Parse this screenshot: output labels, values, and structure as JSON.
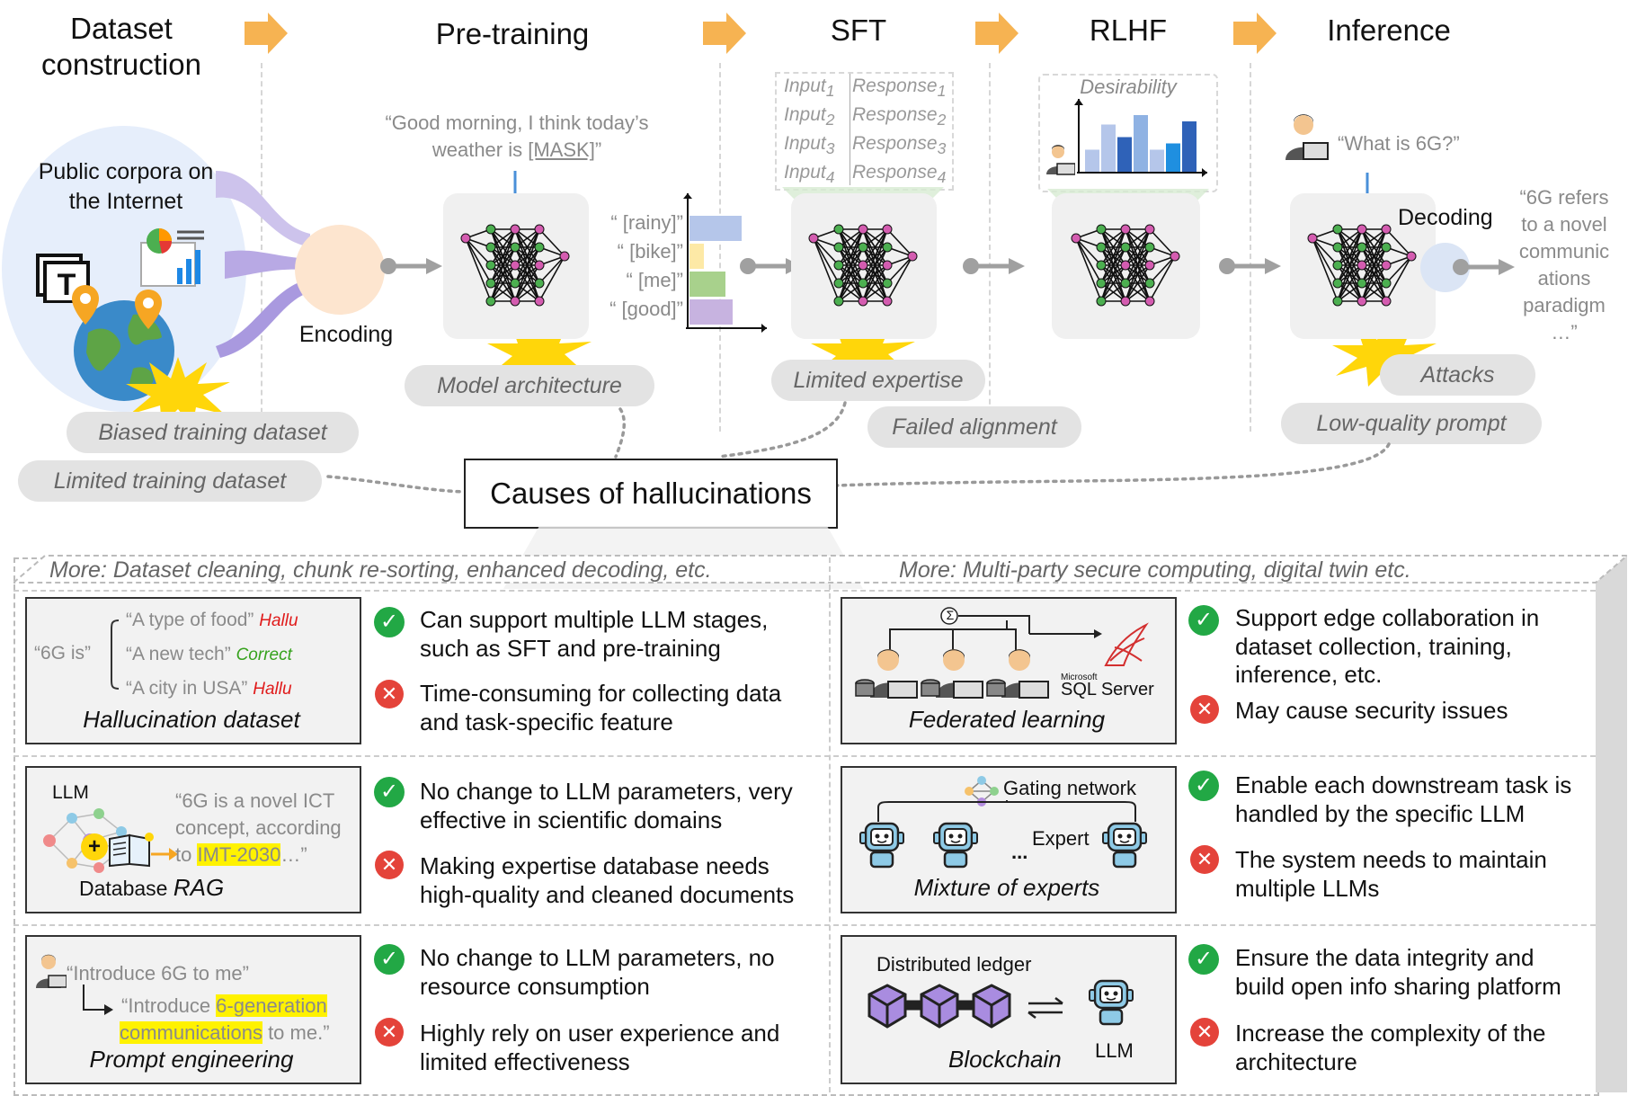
{
  "stages": {
    "dataset": "Dataset construction",
    "pretraining": "Pre-training",
    "sft": "SFT",
    "rlhf": "RLHF",
    "inference": "Inference"
  },
  "top": {
    "corpora": "Public corpora on the Internet",
    "encoding": "Encoding",
    "mask_quote_1": "“Good morning, I think today’s",
    "mask_quote_2": "weather is ",
    "mask_token": "[MASK]",
    "mask_quote_end": "”",
    "candidates": [
      "“ [rainy]”",
      "“ [bike]”",
      "“ [me]”",
      "“ [good]”"
    ],
    "sft_rows": [
      {
        "input": "Input",
        "sub": "1",
        "response": "Response",
        "rsub": "1"
      },
      {
        "input": "Input",
        "sub": "2",
        "response": "Response",
        "rsub": "2"
      },
      {
        "input": "Input",
        "sub": "3",
        "response": "Response",
        "rsub": "3"
      },
      {
        "input": "Input",
        "sub": "4",
        "response": "Response",
        "rsub": "4"
      }
    ],
    "desirability": "Desirability",
    "question": "“What is 6G?”",
    "decoding": "Decoding",
    "answer_lines": [
      "“6G refers",
      "to a novel",
      "communic",
      "ations",
      "paradigm",
      "…”"
    ]
  },
  "causes": {
    "biased": "Biased training dataset",
    "limited_dataset": "Limited training dataset",
    "model_arch": "Model architecture",
    "limited_expertise": "Limited expertise",
    "failed_alignment": "Failed alignment",
    "attacks": "Attacks",
    "low_quality": "Low-quality prompt",
    "center": "Causes of hallucinations"
  },
  "more": {
    "left": "More: Dataset cleaning, chunk re-sorting, enhanced decoding, etc.",
    "right": "More: Multi-party secure computing, digital twin etc."
  },
  "left_panels": [
    {
      "caption": "Hallucination dataset",
      "lead": "“6G is”",
      "items": [
        {
          "text": "“A type of food”",
          "tag": "Hallu"
        },
        {
          "text": "“A new tech”",
          "tag": "Correct"
        },
        {
          "text": "“A city in USA”",
          "tag": "Hallu"
        }
      ],
      "pro": [
        "Can support multiple LLM stages,",
        "such as SFT and pre-training"
      ],
      "con": [
        "Time-consuming for collecting data",
        "and task-specific feature"
      ]
    },
    {
      "caption_a": "Database ",
      "caption_b": "RAG",
      "llm_label": "LLM",
      "quote": [
        "“6G is a novel ICT",
        "concept, according",
        "to "
      ],
      "quote_hl": "IMT-2030",
      "quote_end": "…”",
      "pro": [
        "No change to LLM parameters, very",
        "effective in scientific domains"
      ],
      "con": [
        "Making expertise database needs",
        "high-quality and cleaned documents"
      ]
    },
    {
      "caption": "Prompt engineering",
      "quote1": "“Introduce 6G to me”",
      "quote2_a": "“Introduce ",
      "quote2_hl1": "6-generation",
      "quote2_hl2": "communications",
      "quote2_b": " to me.”",
      "pro": [
        "No change to LLM parameters, no",
        "resource consumption"
      ],
      "con": [
        "Highly rely on user experience and",
        "limited effectiveness"
      ]
    }
  ],
  "right_panels": [
    {
      "caption": "Federated learning",
      "sigma": "Σ",
      "ms": "Microsoft",
      "sql": "SQL Server",
      "pro": [
        "Support edge collaboration in",
        "dataset collection, training,",
        "inference, etc."
      ],
      "con": [
        "May cause security issues"
      ]
    },
    {
      "caption": "Mixture of experts",
      "gating": "Gating network",
      "expert": "Expert",
      "dots": "...",
      "pro": [
        "Enable each downstream task is",
        "handled by the specific LLM"
      ],
      "con": [
        "The system needs to maintain",
        "multiple LLMs"
      ]
    },
    {
      "caption": "Blockchain",
      "ledger": "Distributed ledger",
      "llm": "LLM",
      "pro": [
        "Ensure the data integrity and",
        "build open info sharing platform"
      ],
      "con": [
        "Increase the complexity of the",
        "architecture"
      ]
    }
  ],
  "colors": {
    "orange_arrow": "#f6b352",
    "gray_pill": "#e3e3e3",
    "ok": "#22a845",
    "bad": "#e4433a",
    "highlight": "#fff200",
    "burst": "#ffd60a"
  }
}
